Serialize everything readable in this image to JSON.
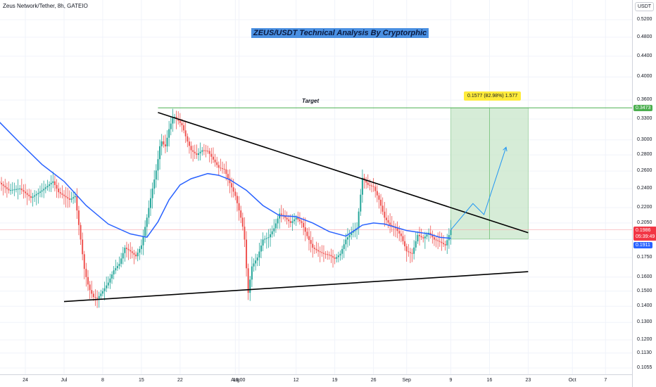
{
  "symbol_title": "Zeus Network/Tether, 8h, GATEIO",
  "headline": "ZEUS/USDT Technical Analysis By Cryptorphic",
  "target_label": "Target",
  "measure_label": "0.1577 (82.98%) 1.577",
  "currency": "USDT",
  "price_tags": {
    "target": "0.3473",
    "last_price": "0.1986",
    "countdown": "05:39:49",
    "ma_value": "0.1911"
  },
  "colors": {
    "up": "#26a69a",
    "down": "#ef5350",
    "ma": "#2962ff",
    "target_line": "#4caf50",
    "target_zone": "#c8e6c9",
    "trendline": "#000000",
    "projection": "#2196f3"
  },
  "chart_data": {
    "type": "line",
    "title": "ZEUS/USDT Technical Analysis By Cryptorphic",
    "y_scale": "log",
    "ylim": [
      0.1005,
      0.535
    ],
    "y_ticks": [
      "0.5200",
      "0.4800",
      "0.4400",
      "0.4000",
      "0.3600",
      "0.3300",
      "0.3000",
      "0.2800",
      "0.2600",
      "0.2400",
      "0.2200",
      "0.2050",
      "0.1900",
      "0.1750",
      "0.1600",
      "0.1500",
      "0.1400",
      "0.1300",
      "0.1200",
      "0.1130",
      "0.1055"
    ],
    "x_ticks": [
      "24",
      "Jul",
      "8",
      "15",
      "22",
      "Aug",
      "16:00",
      "12",
      "19",
      "26",
      "Sep",
      "9",
      "16",
      "23",
      "Oct",
      "7"
    ],
    "x_tick_days": [
      -7,
      0,
      7,
      14,
      21,
      31,
      31.67,
      42,
      49,
      56,
      62,
      70,
      77,
      84,
      92,
      98
    ],
    "x_unit": "days since Jul 1",
    "xlim": [
      -12,
      103
    ],
    "series": [
      {
        "name": "",
        "role": "price",
        "points": [
          [
            -12,
            0.248
          ],
          [
            -10,
            0.238
          ],
          [
            -8,
            0.24
          ],
          [
            -6,
            0.23
          ],
          [
            -4,
            0.238
          ],
          [
            -2,
            0.248
          ],
          [
            -1,
            0.236
          ],
          [
            1,
            0.228
          ],
          [
            2,
            0.232
          ],
          [
            3,
            0.19
          ],
          [
            3.7,
            0.165
          ],
          [
            4.5,
            0.152
          ],
          [
            5.3,
            0.146
          ],
          [
            6,
            0.145
          ],
          [
            7,
            0.15
          ],
          [
            8,
            0.156
          ],
          [
            9,
            0.165
          ],
          [
            10,
            0.17
          ],
          [
            11,
            0.183
          ],
          [
            12,
            0.18
          ],
          [
            13,
            0.176
          ],
          [
            14,
            0.185
          ],
          [
            15,
            0.21
          ],
          [
            16,
            0.24
          ],
          [
            16.8,
            0.265
          ],
          [
            17.5,
            0.3
          ],
          [
            18.3,
            0.29
          ],
          [
            19,
            0.315
          ],
          [
            19.8,
            0.335
          ],
          [
            20.6,
            0.328
          ],
          [
            21.4,
            0.32
          ],
          [
            22.2,
            0.3
          ],
          [
            23,
            0.286
          ],
          [
            24,
            0.28
          ],
          [
            25,
            0.286
          ],
          [
            26,
            0.285
          ],
          [
            27,
            0.274
          ],
          [
            28,
            0.264
          ],
          [
            29,
            0.262
          ],
          [
            30,
            0.246
          ],
          [
            31,
            0.232
          ],
          [
            32,
            0.21
          ],
          [
            32.6,
            0.195
          ],
          [
            33.3,
            0.148
          ],
          [
            34,
            0.168
          ],
          [
            35,
            0.175
          ],
          [
            36,
            0.19
          ],
          [
            37,
            0.192
          ],
          [
            38,
            0.2
          ],
          [
            39,
            0.214
          ],
          [
            40,
            0.21
          ],
          [
            41,
            0.205
          ],
          [
            42,
            0.21
          ],
          [
            43,
            0.205
          ],
          [
            44,
            0.193
          ],
          [
            45,
            0.183
          ],
          [
            46,
            0.18
          ],
          [
            47,
            0.178
          ],
          [
            48,
            0.177
          ],
          [
            49,
            0.174
          ],
          [
            50,
            0.178
          ],
          [
            51,
            0.19
          ],
          [
            52,
            0.196
          ],
          [
            53,
            0.2
          ],
          [
            54,
            0.252
          ],
          [
            55,
            0.244
          ],
          [
            56,
            0.242
          ],
          [
            57,
            0.228
          ],
          [
            58,
            0.21
          ],
          [
            59,
            0.203
          ],
          [
            60,
            0.2
          ],
          [
            61,
            0.193
          ],
          [
            62,
            0.18
          ],
          [
            63,
            0.178
          ],
          [
            64,
            0.194
          ],
          [
            65,
            0.191
          ],
          [
            66,
            0.196
          ],
          [
            67,
            0.19
          ],
          [
            68,
            0.188
          ],
          [
            69,
            0.185
          ],
          [
            70,
            0.1986
          ]
        ]
      },
      {
        "name": "",
        "role": "moving-average",
        "points": [
          [
            -12,
            0.328
          ],
          [
            -8,
            0.296
          ],
          [
            -4,
            0.268
          ],
          [
            0,
            0.248
          ],
          [
            4,
            0.222
          ],
          [
            8,
            0.204
          ],
          [
            12,
            0.195
          ],
          [
            15,
            0.192
          ],
          [
            17,
            0.206
          ],
          [
            19,
            0.228
          ],
          [
            21,
            0.244
          ],
          [
            23,
            0.251
          ],
          [
            26,
            0.257
          ],
          [
            28,
            0.255
          ],
          [
            30,
            0.25
          ],
          [
            33,
            0.238
          ],
          [
            36,
            0.222
          ],
          [
            39,
            0.212
          ],
          [
            42,
            0.211
          ],
          [
            45,
            0.205
          ],
          [
            48,
            0.197
          ],
          [
            51,
            0.193
          ],
          [
            54,
            0.203
          ],
          [
            56,
            0.205
          ],
          [
            58,
            0.204
          ],
          [
            62,
            0.198
          ],
          [
            66,
            0.195
          ],
          [
            68,
            0.192
          ],
          [
            70,
            0.1911
          ]
        ]
      },
      {
        "name": "",
        "role": "upper-trendline",
        "points": [
          [
            17,
            0.34
          ],
          [
            84,
            0.196
          ]
        ]
      },
      {
        "name": "",
        "role": "lower-trendline",
        "points": [
          [
            0,
            0.143
          ],
          [
            84,
            0.164
          ]
        ]
      },
      {
        "name": "",
        "role": "projection",
        "points": [
          [
            70,
            0.1986
          ],
          [
            74,
            0.224
          ],
          [
            76,
            0.213
          ],
          [
            80,
            0.29
          ]
        ]
      }
    ],
    "target": {
      "label": "Target",
      "price": 0.3473,
      "from_day": 17
    },
    "target_zone": {
      "from_day": 70,
      "to_day": 84,
      "low": 0.1904,
      "high": 0.3473
    }
  }
}
